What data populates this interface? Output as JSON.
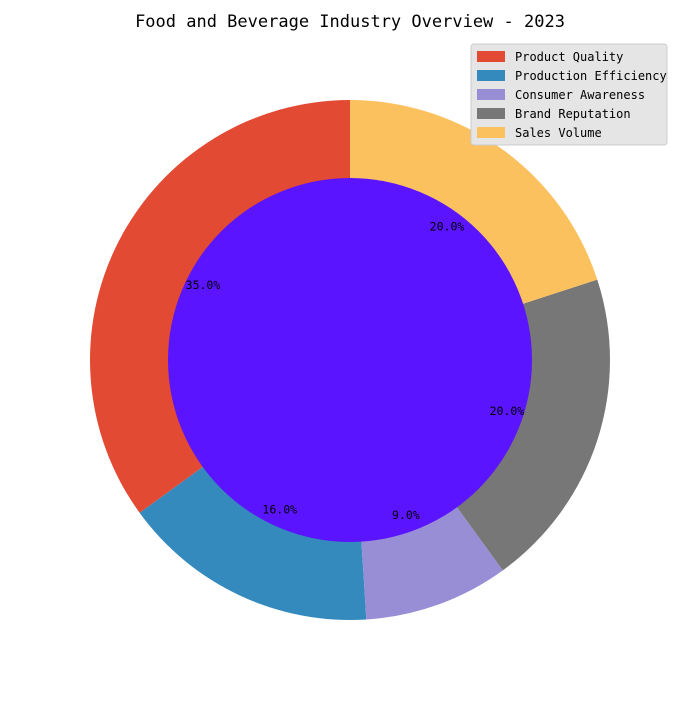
{
  "chart_data": {
    "type": "pie",
    "title": "Food and Beverage Industry Overview - 2023",
    "categories": [
      "Product Quality",
      "Production Efficiency",
      "Consumer Awareness",
      "Brand Reputation",
      "Sales Volume"
    ],
    "values": [
      35,
      16,
      9,
      20,
      20
    ],
    "value_labels": [
      "35.0%",
      "16.0%",
      "9.0%",
      "20.0%",
      "20.0%"
    ],
    "colors": [
      "#E24A33",
      "#348ABD",
      "#988ED5",
      "#777777",
      "#FBC15E"
    ],
    "center_color": "#5A14FF",
    "donut": true,
    "start_angle": 90,
    "direction": "counterclockwise",
    "legend_position": "top-right",
    "legend_background": "#E5E5E5"
  }
}
